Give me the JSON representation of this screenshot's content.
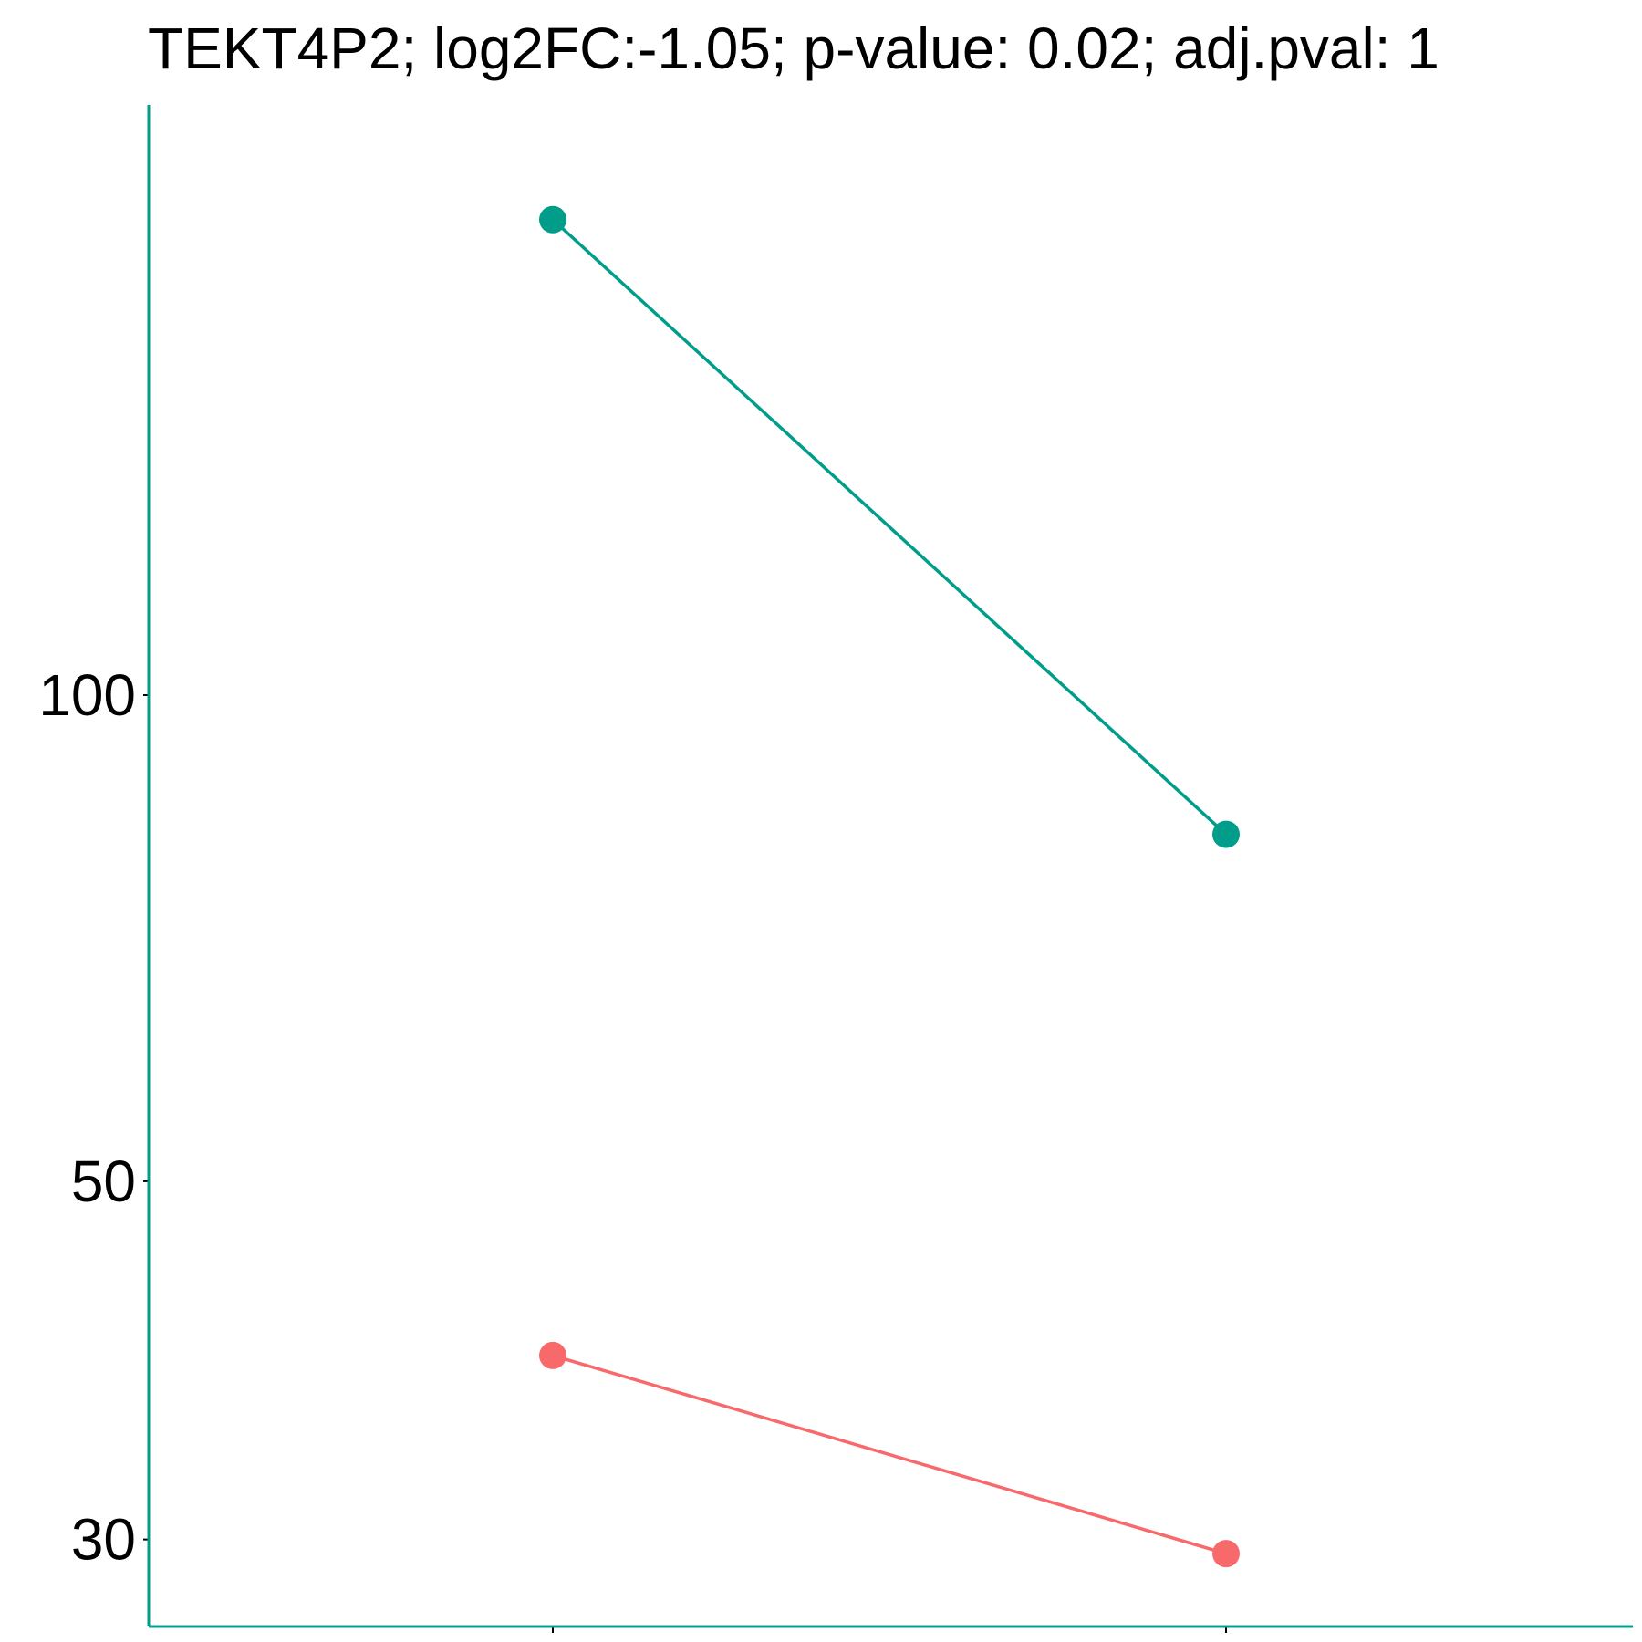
{
  "chart_data": {
    "type": "line",
    "title": "TEKT4P2; log2FC:-1.05; p-value: 0.02; adj.pval: 1",
    "xlabel": "",
    "ylabel": "",
    "x_categories": [
      "",
      ""
    ],
    "y_scale": "log",
    "y_ticks": [
      30,
      50,
      100
    ],
    "y_tick_labels": [
      "30",
      "50",
      "100"
    ],
    "ylim": [
      26.5,
      232
    ],
    "grid": false,
    "legend": "none",
    "series": [
      {
        "values": [
          197,
          82
        ],
        "color": "#009E8A"
      },
      {
        "values": [
          39,
          29.4
        ],
        "color": "#F8696B"
      }
    ],
    "axis_color": "#009E8A",
    "tick_color": "#000000"
  }
}
